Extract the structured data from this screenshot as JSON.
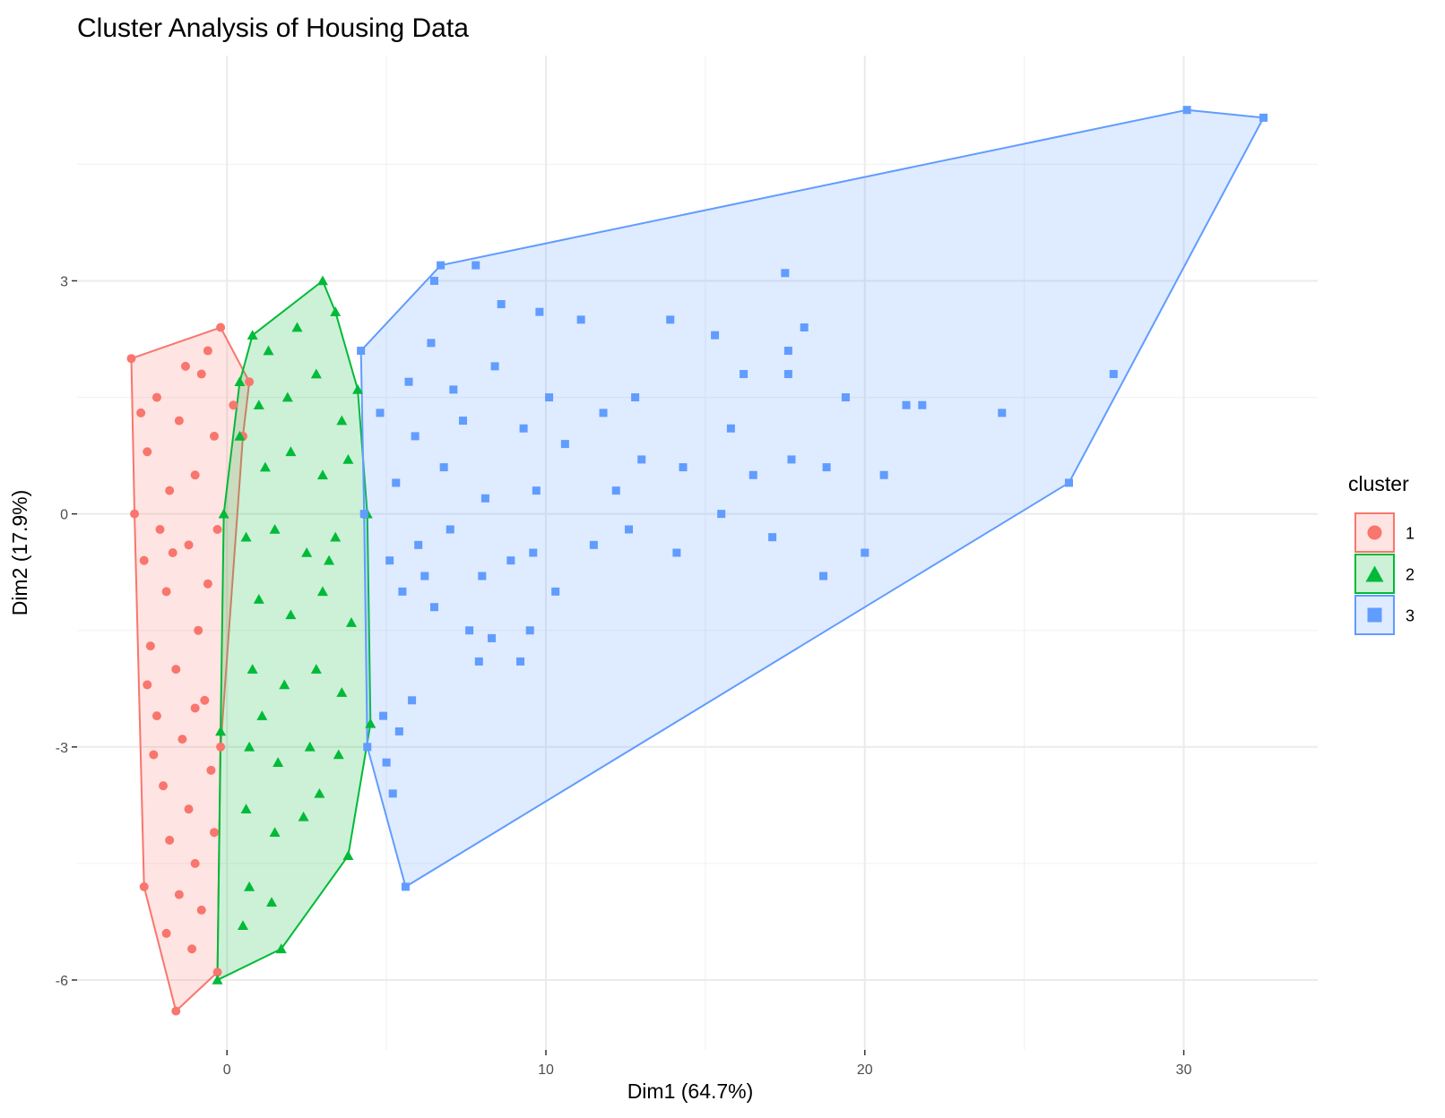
{
  "chart_data": {
    "type": "scatter",
    "title": "Cluster Analysis of Housing Data",
    "xlabel": "Dim1 (64.7%)",
    "ylabel": "Dim2 (17.9%)",
    "xlim": [
      -4.7,
      34.2
    ],
    "ylim": [
      -6.9,
      5.9
    ],
    "x_ticks": [
      0,
      10,
      20,
      30
    ],
    "x_tick_labels": [
      "0",
      "10",
      "20",
      "30"
    ],
    "y_ticks": [
      -6,
      -3,
      0,
      3
    ],
    "y_tick_labels": [
      "-6",
      "-3",
      "0",
      "3"
    ],
    "grid": true,
    "legend": {
      "title": "cluster",
      "position": "right",
      "entries": [
        "1",
        "2",
        "3"
      ]
    },
    "colors": {
      "1": "#F8766D",
      "2": "#00BA38",
      "3": "#619CFF"
    },
    "series": [
      {
        "name": "1",
        "marker": "circle",
        "hull": [
          [
            -3.0,
            2.0
          ],
          [
            -0.2,
            2.4
          ],
          [
            0.7,
            1.7
          ],
          [
            0.5,
            1.0
          ],
          [
            -0.2,
            -3.0
          ],
          [
            -0.3,
            -5.9
          ],
          [
            -1.6,
            -6.4
          ],
          [
            -2.6,
            -4.8
          ],
          [
            -2.9,
            0.0
          ]
        ],
        "points": [
          [
            -3.0,
            2.0
          ],
          [
            -0.2,
            2.4
          ],
          [
            0.7,
            1.7
          ],
          [
            0.5,
            1.0
          ],
          [
            -0.2,
            -3.0
          ],
          [
            -0.3,
            -5.9
          ],
          [
            -1.6,
            -6.4
          ],
          [
            -2.6,
            -4.8
          ],
          [
            -2.9,
            0.0
          ],
          [
            -2.2,
            1.5
          ],
          [
            -1.5,
            1.2
          ],
          [
            -0.8,
            1.8
          ],
          [
            -2.5,
            0.8
          ],
          [
            -1.8,
            0.3
          ],
          [
            -1.0,
            0.5
          ],
          [
            -0.4,
            1.0
          ],
          [
            -2.6,
            -0.6
          ],
          [
            -1.9,
            -1.0
          ],
          [
            -1.2,
            -0.4
          ],
          [
            -0.6,
            -0.9
          ],
          [
            -2.4,
            -1.7
          ],
          [
            -1.6,
            -2.0
          ],
          [
            -0.9,
            -1.5
          ],
          [
            -2.2,
            -2.6
          ],
          [
            -1.4,
            -2.9
          ],
          [
            -0.7,
            -2.4
          ],
          [
            -2.0,
            -3.5
          ],
          [
            -1.2,
            -3.8
          ],
          [
            -0.5,
            -3.3
          ],
          [
            -1.8,
            -4.2
          ],
          [
            -1.0,
            -4.5
          ],
          [
            -2.3,
            -3.1
          ],
          [
            -0.4,
            -4.1
          ],
          [
            -1.5,
            -4.9
          ],
          [
            -0.8,
            -5.1
          ],
          [
            -1.9,
            -5.4
          ],
          [
            -1.1,
            -5.6
          ],
          [
            -2.1,
            -0.2
          ],
          [
            -1.3,
            1.9
          ],
          [
            -0.6,
            2.1
          ],
          [
            -2.7,
            1.3
          ],
          [
            -1.7,
            -0.5
          ],
          [
            -0.3,
            -0.2
          ],
          [
            -2.5,
            -2.2
          ],
          [
            -1.0,
            -2.5
          ],
          [
            0.2,
            1.4
          ]
        ]
      },
      {
        "name": "2",
        "marker": "triangle",
        "hull": [
          [
            0.8,
            2.3
          ],
          [
            3.0,
            3.0
          ],
          [
            3.4,
            2.6
          ],
          [
            4.1,
            1.6
          ],
          [
            4.4,
            0.0
          ],
          [
            4.5,
            -2.7
          ],
          [
            3.8,
            -4.4
          ],
          [
            1.7,
            -5.6
          ],
          [
            -0.3,
            -6.0
          ],
          [
            -0.2,
            -2.8
          ],
          [
            -0.1,
            0.0
          ],
          [
            0.4,
            1.7
          ]
        ],
        "points": [
          [
            0.8,
            2.3
          ],
          [
            3.0,
            3.0
          ],
          [
            3.4,
            2.6
          ],
          [
            4.1,
            1.6
          ],
          [
            4.4,
            0.0
          ],
          [
            4.5,
            -2.7
          ],
          [
            3.8,
            -4.4
          ],
          [
            1.7,
            -5.6
          ],
          [
            -0.3,
            -6.0
          ],
          [
            -0.2,
            -2.8
          ],
          [
            -0.1,
            0.0
          ],
          [
            0.4,
            1.7
          ],
          [
            1.3,
            2.1
          ],
          [
            2.2,
            2.4
          ],
          [
            1.0,
            1.4
          ],
          [
            1.9,
            1.5
          ],
          [
            2.8,
            1.8
          ],
          [
            3.6,
            1.2
          ],
          [
            1.2,
            0.6
          ],
          [
            2.0,
            0.8
          ],
          [
            3.0,
            0.5
          ],
          [
            3.8,
            0.7
          ],
          [
            0.6,
            -0.3
          ],
          [
            1.5,
            -0.2
          ],
          [
            2.5,
            -0.5
          ],
          [
            3.4,
            -0.3
          ],
          [
            1.0,
            -1.1
          ],
          [
            2.0,
            -1.3
          ],
          [
            3.0,
            -1.0
          ],
          [
            3.9,
            -1.4
          ],
          [
            0.8,
            -2.0
          ],
          [
            1.8,
            -2.2
          ],
          [
            2.8,
            -2.0
          ],
          [
            3.6,
            -2.3
          ],
          [
            0.7,
            -3.0
          ],
          [
            1.6,
            -3.2
          ],
          [
            2.6,
            -3.0
          ],
          [
            3.5,
            -3.1
          ],
          [
            0.6,
            -3.8
          ],
          [
            1.5,
            -4.1
          ],
          [
            2.4,
            -3.9
          ],
          [
            0.7,
            -4.8
          ],
          [
            1.4,
            -5.0
          ],
          [
            0.5,
            -5.3
          ],
          [
            2.9,
            -3.6
          ],
          [
            1.1,
            -2.6
          ],
          [
            3.2,
            -0.6
          ],
          [
            0.4,
            1.0
          ]
        ]
      },
      {
        "name": "3",
        "marker": "square",
        "hull": [
          [
            6.7,
            3.2
          ],
          [
            30.1,
            5.2
          ],
          [
            32.5,
            5.1
          ],
          [
            26.4,
            0.4
          ],
          [
            5.6,
            -4.8
          ],
          [
            4.4,
            -3.0
          ],
          [
            4.3,
            0.0
          ],
          [
            4.2,
            2.1
          ]
        ],
        "points": [
          [
            6.7,
            3.2
          ],
          [
            30.1,
            5.2
          ],
          [
            32.5,
            5.1
          ],
          [
            26.4,
            0.4
          ],
          [
            5.6,
            -4.8
          ],
          [
            4.4,
            -3.0
          ],
          [
            4.3,
            0.0
          ],
          [
            4.2,
            2.1
          ],
          [
            6.5,
            3.0
          ],
          [
            7.8,
            3.2
          ],
          [
            8.6,
            2.7
          ],
          [
            9.8,
            2.6
          ],
          [
            11.1,
            2.5
          ],
          [
            13.9,
            2.5
          ],
          [
            17.5,
            3.1
          ],
          [
            18.1,
            2.4
          ],
          [
            15.3,
            2.3
          ],
          [
            27.8,
            1.8
          ],
          [
            19.4,
            1.5
          ],
          [
            21.3,
            1.4
          ],
          [
            21.8,
            1.4
          ],
          [
            24.3,
            1.3
          ],
          [
            20.6,
            0.5
          ],
          [
            20.0,
            -0.5
          ],
          [
            18.7,
            -0.8
          ],
          [
            17.1,
            -0.3
          ],
          [
            18.8,
            0.6
          ],
          [
            17.7,
            0.7
          ],
          [
            17.6,
            1.8
          ],
          [
            17.6,
            2.1
          ],
          [
            16.2,
            1.8
          ],
          [
            14.3,
            0.6
          ],
          [
            14.1,
            -0.5
          ],
          [
            15.5,
            -0.0
          ],
          [
            15.8,
            1.1
          ],
          [
            16.5,
            0.5
          ],
          [
            12.8,
            1.5
          ],
          [
            12.2,
            0.3
          ],
          [
            11.5,
            -0.4
          ],
          [
            10.3,
            -1.0
          ],
          [
            9.2,
            -1.9
          ],
          [
            9.5,
            -1.5
          ],
          [
            8.3,
            -1.6
          ],
          [
            7.6,
            -1.5
          ],
          [
            7.9,
            -1.9
          ],
          [
            6.5,
            -1.2
          ],
          [
            5.8,
            -2.4
          ],
          [
            5.4,
            -2.8
          ],
          [
            5.2,
            -3.6
          ],
          [
            5.0,
            -3.2
          ],
          [
            4.9,
            -2.6
          ],
          [
            5.5,
            -1.0
          ],
          [
            6.0,
            -0.4
          ],
          [
            5.3,
            0.4
          ],
          [
            5.9,
            1.0
          ],
          [
            6.8,
            0.6
          ],
          [
            7.4,
            1.2
          ],
          [
            8.1,
            0.2
          ],
          [
            8.9,
            -0.6
          ],
          [
            9.7,
            0.3
          ],
          [
            10.6,
            0.9
          ],
          [
            11.8,
            1.3
          ],
          [
            12.6,
            -0.2
          ],
          [
            13.0,
            0.7
          ],
          [
            7.1,
            1.6
          ],
          [
            8.4,
            1.9
          ],
          [
            9.3,
            1.1
          ],
          [
            10.1,
            1.5
          ],
          [
            6.2,
            -0.8
          ],
          [
            7.0,
            -0.2
          ],
          [
            8.0,
            -0.8
          ],
          [
            9.6,
            -0.5
          ],
          [
            5.7,
            1.7
          ],
          [
            6.4,
            2.2
          ],
          [
            4.8,
            1.3
          ],
          [
            5.1,
            -0.6
          ]
        ]
      }
    ]
  }
}
